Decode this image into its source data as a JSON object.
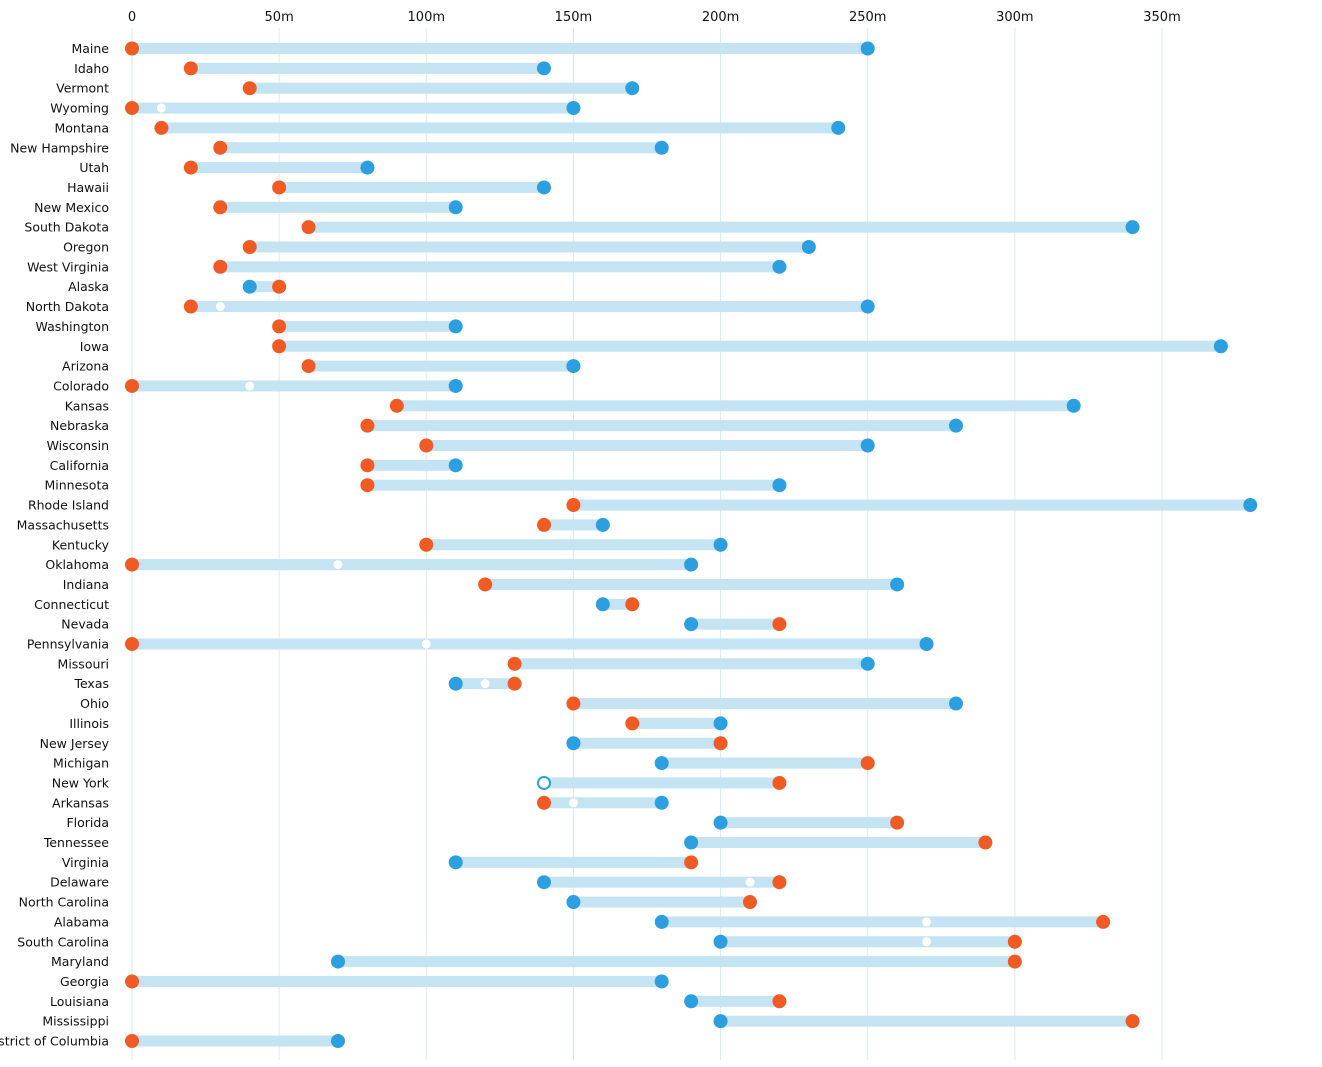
{
  "chart_data": {
    "type": "dumbbell",
    "title": "",
    "xlabel": "",
    "ylabel": "",
    "xlim": [
      0,
      350
    ],
    "x_ticks": [
      {
        "value": 0,
        "label": "0"
      },
      {
        "value": 50,
        "label": "50m"
      },
      {
        "value": 100,
        "label": "100m"
      },
      {
        "value": 150,
        "label": "150m"
      },
      {
        "value": 200,
        "label": "200m"
      },
      {
        "value": 250,
        "label": "250m"
      },
      {
        "value": 300,
        "label": "300m"
      },
      {
        "value": 350,
        "label": "350m"
      }
    ],
    "grid": true,
    "colors": {
      "orange": "#f05a23",
      "blue": "#2b9fe0",
      "bar": "#c4e3f3",
      "grid": "#d6ebf7",
      "white_marker": "#ffffff"
    },
    "rows": [
      {
        "label": "Maine",
        "orange": 0,
        "blue": 250
      },
      {
        "label": "Idaho",
        "orange": 20,
        "blue": 140
      },
      {
        "label": "Vermont",
        "orange": 40,
        "blue": 170
      },
      {
        "label": "Wyoming",
        "orange": 0,
        "blue": 150,
        "white": 10
      },
      {
        "label": "Montana",
        "orange": 10,
        "blue": 240
      },
      {
        "label": "New Hampshire",
        "orange": 30,
        "blue": 180
      },
      {
        "label": "Utah",
        "orange": 20,
        "blue": 80
      },
      {
        "label": "Hawaii",
        "orange": 50,
        "blue": 140
      },
      {
        "label": "New Mexico",
        "orange": 30,
        "blue": 110
      },
      {
        "label": "South Dakota",
        "orange": 60,
        "blue": 340
      },
      {
        "label": "Oregon",
        "orange": 40,
        "blue": 230
      },
      {
        "label": "West Virginia",
        "orange": 30,
        "blue": 220
      },
      {
        "label": "Alaska",
        "orange": 50,
        "blue": 40
      },
      {
        "label": "North Dakota",
        "orange": 20,
        "blue": 250,
        "white": 30
      },
      {
        "label": "Washington",
        "orange": 50,
        "blue": 110
      },
      {
        "label": "Iowa",
        "orange": 50,
        "blue": 370
      },
      {
        "label": "Arizona",
        "orange": 60,
        "blue": 150
      },
      {
        "label": "Colorado",
        "orange": 0,
        "blue": 110,
        "white": 40
      },
      {
        "label": "Kansas",
        "orange": 90,
        "blue": 320
      },
      {
        "label": "Nebraska",
        "orange": 80,
        "blue": 280
      },
      {
        "label": "Wisconsin",
        "orange": 100,
        "blue": 250
      },
      {
        "label": "California",
        "orange": 80,
        "blue": 110
      },
      {
        "label": "Minnesota",
        "orange": 80,
        "blue": 220
      },
      {
        "label": "Rhode Island",
        "orange": 150,
        "blue": 380
      },
      {
        "label": "Massachusetts",
        "orange": 140,
        "blue": 160
      },
      {
        "label": "Kentucky",
        "orange": 100,
        "blue": 200
      },
      {
        "label": "Oklahoma",
        "orange": 0,
        "blue": 190,
        "white": 70
      },
      {
        "label": "Indiana",
        "orange": 120,
        "blue": 260
      },
      {
        "label": "Connecticut",
        "orange": 170,
        "blue": 160
      },
      {
        "label": "Nevada",
        "orange": 220,
        "blue": 190
      },
      {
        "label": "Pennsylvania",
        "orange": 0,
        "blue": 270,
        "white": 100
      },
      {
        "label": "Missouri",
        "orange": 130,
        "blue": 250
      },
      {
        "label": "Texas",
        "orange": 130,
        "blue": 110,
        "white": 120
      },
      {
        "label": "Ohio",
        "orange": 150,
        "blue": 280
      },
      {
        "label": "Illinois",
        "orange": 170,
        "blue": 200
      },
      {
        "label": "New Jersey",
        "orange": 200,
        "blue": 150
      },
      {
        "label": "Michigan",
        "orange": 250,
        "blue": 180
      },
      {
        "label": "New York",
        "orange": 220,
        "blue": 140,
        "blue_hollow": true
      },
      {
        "label": "Arkansas",
        "orange": 140,
        "blue": 180,
        "white": 150
      },
      {
        "label": "Florida",
        "orange": 260,
        "blue": 200
      },
      {
        "label": "Tennessee",
        "orange": 290,
        "blue": 190
      },
      {
        "label": "Virginia",
        "orange": 190,
        "blue": 110
      },
      {
        "label": "Delaware",
        "orange": 220,
        "blue": 140,
        "white": 210
      },
      {
        "label": "North Carolina",
        "orange": 210,
        "blue": 150
      },
      {
        "label": "Alabama",
        "orange": 330,
        "blue": 180,
        "white": 270
      },
      {
        "label": "South Carolina",
        "orange": 300,
        "blue": 200,
        "white": 270
      },
      {
        "label": "Maryland",
        "orange": 300,
        "blue": 70
      },
      {
        "label": "Georgia",
        "orange": 0,
        "blue": 180
      },
      {
        "label": "Louisiana",
        "orange": 220,
        "blue": 190
      },
      {
        "label": "Mississippi",
        "orange": 340,
        "blue": 200
      },
      {
        "label": "istrict of Columbia",
        "orange": 0,
        "blue": 70
      }
    ]
  }
}
